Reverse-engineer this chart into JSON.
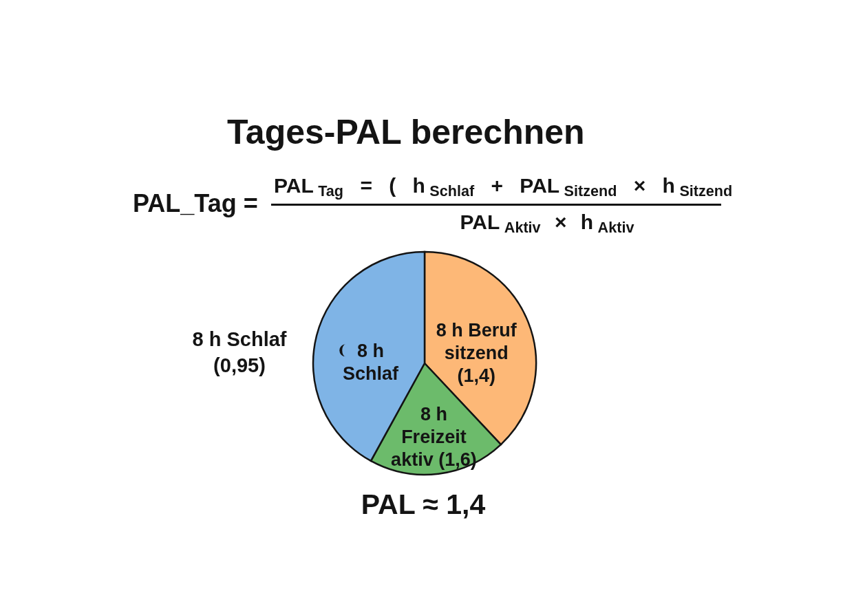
{
  "chart_data": {
    "type": "pie",
    "title": "Tages-PAL berechnen",
    "categories": [
      "8 h Beruf sitzend (1,4)",
      "8 h Freizeit aktiv (1,6)",
      "8 h Schlaf"
    ],
    "values": [
      38,
      20,
      42
    ],
    "colors": [
      "#fdb877",
      "#6cbb6b",
      "#7fb4e6"
    ],
    "annotations": [
      "PAL_Tag =",
      "PAL$_{Tag}$ = ( h$_{Schlaf}$ + PAL$_{Sitzend}$ × h$_{Sitzend}$",
      "PAL$_{Aktiv}$ × h$_{Aktiv}$",
      "8 h Schlaf (0,95)",
      "PAL ≈ 1,4"
    ]
  }
}
